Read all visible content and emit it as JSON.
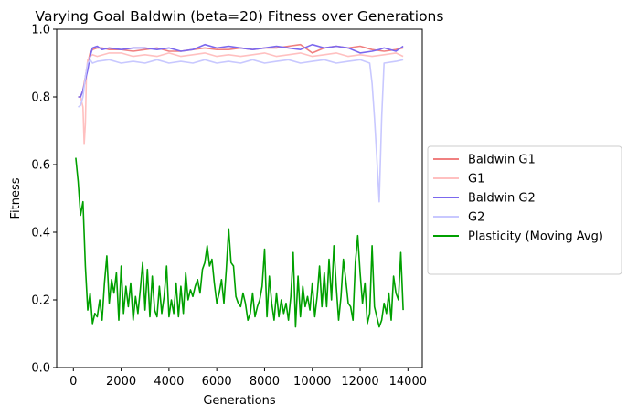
{
  "chart_data": {
    "type": "line",
    "title": "Varying Goal Baldwin (beta=20) Fitness over Generations",
    "xlabel": "Generations",
    "ylabel": "Fitness",
    "xlim": [
      -700,
      14600
    ],
    "ylim": [
      0.0,
      1.0
    ],
    "xticks": [
      0,
      2000,
      4000,
      6000,
      8000,
      10000,
      12000,
      14000
    ],
    "xtick_labels": [
      "0",
      "2000",
      "4000",
      "6000",
      "8000",
      "10000",
      "12000",
      "14000"
    ],
    "yticks": [
      0.0,
      0.2,
      0.4,
      0.6,
      0.8,
      1.0
    ],
    "ytick_labels": [
      "0.0",
      "0.2",
      "0.4",
      "0.6",
      "0.8",
      "1.0"
    ],
    "grid": false,
    "legend_position": "outside-right",
    "series": [
      {
        "name": "Baldwin G1",
        "color": "#f08080",
        "x": [
          200,
          300,
          400,
          500,
          600,
          700,
          800,
          1000,
          1200,
          1500,
          2000,
          2500,
          3000,
          3500,
          4000,
          4500,
          5000,
          5500,
          6000,
          6500,
          7000,
          7500,
          8000,
          8500,
          9000,
          9500,
          10000,
          10500,
          11000,
          11500,
          12000,
          12500,
          13000,
          13500,
          13800
        ],
        "y": [
          0.8,
          0.8,
          0.82,
          0.86,
          0.9,
          0.93,
          0.94,
          0.945,
          0.945,
          0.94,
          0.94,
          0.935,
          0.94,
          0.945,
          0.935,
          0.935,
          0.94,
          0.945,
          0.94,
          0.94,
          0.945,
          0.94,
          0.945,
          0.945,
          0.95,
          0.955,
          0.93,
          0.945,
          0.95,
          0.945,
          0.95,
          0.94,
          0.935,
          0.94,
          0.945
        ]
      },
      {
        "name": "G1",
        "color": "#ffc0c0",
        "x": [
          200,
          300,
          400,
          450,
          500,
          550,
          600,
          700,
          800,
          1000,
          1500,
          2000,
          2500,
          3000,
          3500,
          4000,
          4500,
          5000,
          5500,
          6000,
          6500,
          7000,
          7500,
          8000,
          8500,
          9000,
          9500,
          10000,
          10500,
          11000,
          11500,
          12000,
          12500,
          13000,
          13500,
          13800
        ],
        "y": [
          0.8,
          0.8,
          0.77,
          0.66,
          0.72,
          0.88,
          0.91,
          0.92,
          0.925,
          0.92,
          0.93,
          0.93,
          0.92,
          0.925,
          0.92,
          0.93,
          0.92,
          0.925,
          0.93,
          0.92,
          0.925,
          0.92,
          0.925,
          0.93,
          0.92,
          0.925,
          0.93,
          0.92,
          0.925,
          0.93,
          0.92,
          0.925,
          0.92,
          0.925,
          0.93,
          0.92
        ]
      },
      {
        "name": "Baldwin G2",
        "color": "#7b68ee",
        "x": [
          200,
          300,
          400,
          500,
          600,
          700,
          800,
          1000,
          1200,
          1500,
          2000,
          2500,
          3000,
          3500,
          4000,
          4500,
          5000,
          5500,
          6000,
          6500,
          7000,
          7500,
          8000,
          8500,
          9000,
          9500,
          10000,
          10500,
          11000,
          11500,
          12000,
          12500,
          12800,
          13000,
          13500,
          13800
        ],
        "y": [
          0.8,
          0.8,
          0.82,
          0.85,
          0.88,
          0.92,
          0.945,
          0.95,
          0.94,
          0.945,
          0.94,
          0.945,
          0.945,
          0.94,
          0.945,
          0.935,
          0.94,
          0.955,
          0.945,
          0.95,
          0.945,
          0.94,
          0.945,
          0.95,
          0.945,
          0.94,
          0.955,
          0.945,
          0.95,
          0.945,
          0.93,
          0.935,
          0.94,
          0.945,
          0.935,
          0.95
        ]
      },
      {
        "name": "G2",
        "color": "#c8c8ff",
        "x": [
          200,
          300,
          400,
          500,
          600,
          700,
          800,
          1000,
          1500,
          2000,
          2500,
          3000,
          3500,
          4000,
          4500,
          5000,
          5500,
          6000,
          6500,
          7000,
          7500,
          8000,
          8500,
          9000,
          9500,
          10000,
          10500,
          11000,
          11500,
          12000,
          12400,
          12500,
          12600,
          12700,
          12800,
          12900,
          13000,
          13500,
          13800
        ],
        "y": [
          0.77,
          0.775,
          0.8,
          0.86,
          0.9,
          0.91,
          0.9,
          0.905,
          0.91,
          0.9,
          0.905,
          0.9,
          0.91,
          0.9,
          0.905,
          0.9,
          0.91,
          0.9,
          0.905,
          0.9,
          0.91,
          0.9,
          0.905,
          0.91,
          0.9,
          0.905,
          0.91,
          0.9,
          0.905,
          0.91,
          0.9,
          0.84,
          0.74,
          0.62,
          0.49,
          0.74,
          0.9,
          0.905,
          0.91
        ]
      },
      {
        "name": "Plasticity (Moving Avg)",
        "color": "#00a000",
        "x": [
          100,
          200,
          300,
          400,
          500,
          600,
          700,
          800,
          900,
          1000,
          1100,
          1200,
          1300,
          1400,
          1500,
          1600,
          1700,
          1800,
          1900,
          2000,
          2100,
          2200,
          2300,
          2400,
          2500,
          2600,
          2700,
          2800,
          2900,
          3000,
          3100,
          3200,
          3300,
          3400,
          3500,
          3600,
          3700,
          3800,
          3900,
          4000,
          4100,
          4200,
          4300,
          4400,
          4500,
          4600,
          4700,
          4800,
          4900,
          5000,
          5100,
          5200,
          5300,
          5400,
          5500,
          5600,
          5700,
          5800,
          5900,
          6000,
          6100,
          6200,
          6300,
          6400,
          6500,
          6600,
          6700,
          6800,
          6900,
          7000,
          7100,
          7200,
          7300,
          7400,
          7500,
          7600,
          7700,
          7800,
          7900,
          8000,
          8100,
          8200,
          8300,
          8400,
          8500,
          8600,
          8700,
          8800,
          8900,
          9000,
          9100,
          9200,
          9300,
          9400,
          9500,
          9600,
          9700,
          9800,
          9900,
          10000,
          10100,
          10200,
          10300,
          10400,
          10500,
          10600,
          10700,
          10800,
          10900,
          11000,
          11100,
          11200,
          11300,
          11400,
          11500,
          11600,
          11700,
          11800,
          11900,
          12000,
          12100,
          12200,
          12300,
          12400,
          12500,
          12600,
          12700,
          12800,
          12900,
          13000,
          13100,
          13200,
          13300,
          13400,
          13500,
          13600,
          13700,
          13800
        ],
        "y": [
          0.62,
          0.55,
          0.45,
          0.49,
          0.3,
          0.17,
          0.22,
          0.13,
          0.16,
          0.15,
          0.2,
          0.14,
          0.25,
          0.33,
          0.19,
          0.26,
          0.22,
          0.28,
          0.14,
          0.3,
          0.16,
          0.24,
          0.18,
          0.25,
          0.14,
          0.21,
          0.16,
          0.23,
          0.31,
          0.17,
          0.29,
          0.15,
          0.27,
          0.17,
          0.15,
          0.24,
          0.16,
          0.21,
          0.3,
          0.15,
          0.2,
          0.16,
          0.25,
          0.15,
          0.24,
          0.16,
          0.28,
          0.2,
          0.23,
          0.21,
          0.24,
          0.26,
          0.22,
          0.29,
          0.31,
          0.36,
          0.3,
          0.32,
          0.25,
          0.19,
          0.22,
          0.26,
          0.19,
          0.29,
          0.41,
          0.31,
          0.3,
          0.21,
          0.19,
          0.18,
          0.22,
          0.19,
          0.14,
          0.16,
          0.22,
          0.15,
          0.18,
          0.2,
          0.24,
          0.35,
          0.15,
          0.27,
          0.19,
          0.14,
          0.22,
          0.15,
          0.2,
          0.16,
          0.19,
          0.14,
          0.21,
          0.34,
          0.12,
          0.27,
          0.15,
          0.24,
          0.18,
          0.21,
          0.17,
          0.25,
          0.15,
          0.21,
          0.3,
          0.18,
          0.28,
          0.18,
          0.32,
          0.2,
          0.36,
          0.24,
          0.14,
          0.21,
          0.32,
          0.26,
          0.19,
          0.18,
          0.14,
          0.31,
          0.39,
          0.28,
          0.19,
          0.25,
          0.13,
          0.16,
          0.36,
          0.18,
          0.15,
          0.12,
          0.14,
          0.19,
          0.16,
          0.22,
          0.14,
          0.27,
          0.22,
          0.2,
          0.34,
          0.17
        ]
      }
    ]
  }
}
